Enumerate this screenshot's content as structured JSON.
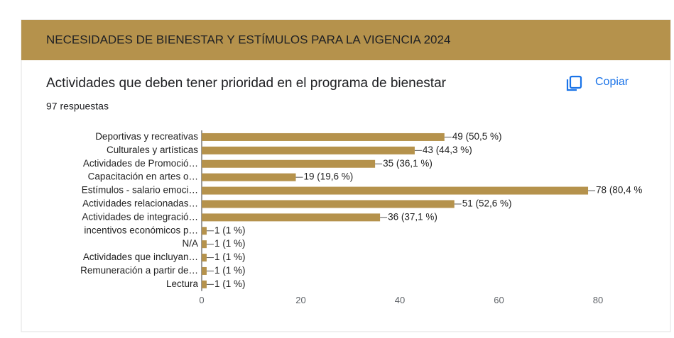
{
  "header": {
    "title": "NECESIDADES DE BIENESTAR Y ESTÍMULOS PARA LA VIGENCIA 2024"
  },
  "question": {
    "title": "Actividades que deben tener prioridad en el programa de bienestar",
    "copy": "Copiar",
    "responses": "97 respuestas"
  },
  "chart_data": {
    "type": "bar",
    "orientation": "horizontal",
    "color": "#b5924c",
    "grid": false,
    "categories": [
      "Deportivas y recreativas",
      "Culturales y artísticas",
      "Actividades de Promoció…",
      "Capacitación en artes o…",
      "Estímulos - salario emoci…",
      "Actividades relacionadas…",
      "Actividades de integració…",
      "incentivos económicos p…",
      "N/A",
      "Actividades que incluyan…",
      "Remuneración a partir de…",
      "Lectura"
    ],
    "values": [
      49,
      43,
      35,
      19,
      78,
      51,
      36,
      1,
      1,
      1,
      1,
      1
    ],
    "value_labels": [
      "49 (50,5 %)",
      "43 (44,3 %)",
      "35 (36,1 %)",
      "19 (19,6 %)",
      "78 (80,4 %",
      "51 (52,6 %)",
      "36 (37,1 %)",
      "1 (1 %)",
      "1 (1 %)",
      "1 (1 %)",
      "1 (1 %)",
      "1 (1 %)"
    ],
    "xlim": [
      0,
      80
    ],
    "xticks": [
      0,
      20,
      40,
      60,
      80
    ]
  }
}
